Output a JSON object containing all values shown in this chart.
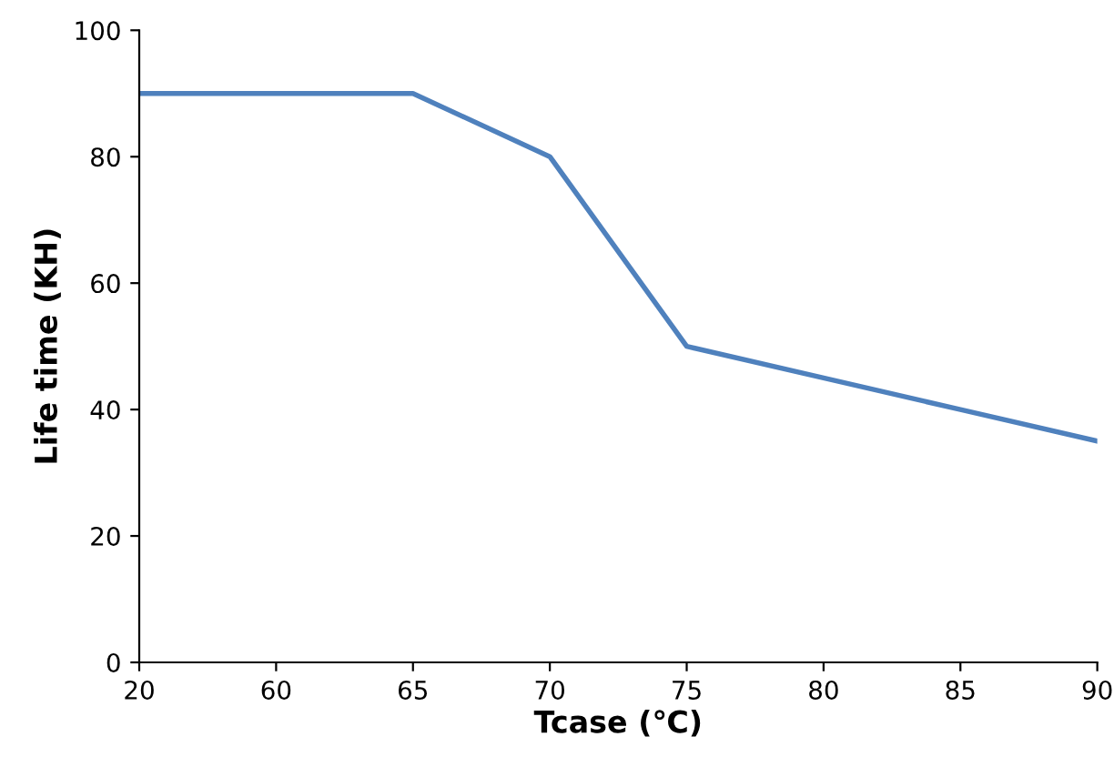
{
  "chart_data": {
    "type": "line",
    "xlabel": "Tcase (℃)",
    "ylabel": "Life time (KH)",
    "categories": [
      "20",
      "60",
      "65",
      "70",
      "75",
      "80",
      "85",
      "90"
    ],
    "series": [
      {
        "color": "#4f81bd",
        "values": [
          90,
          90,
          90,
          80,
          50,
          45,
          40,
          35
        ]
      }
    ],
    "ylim": [
      0,
      100
    ],
    "yticks": [
      0,
      20,
      40,
      60,
      80,
      100
    ],
    "grid": false,
    "legend": false,
    "marker": "none",
    "line_style": "solid"
  }
}
